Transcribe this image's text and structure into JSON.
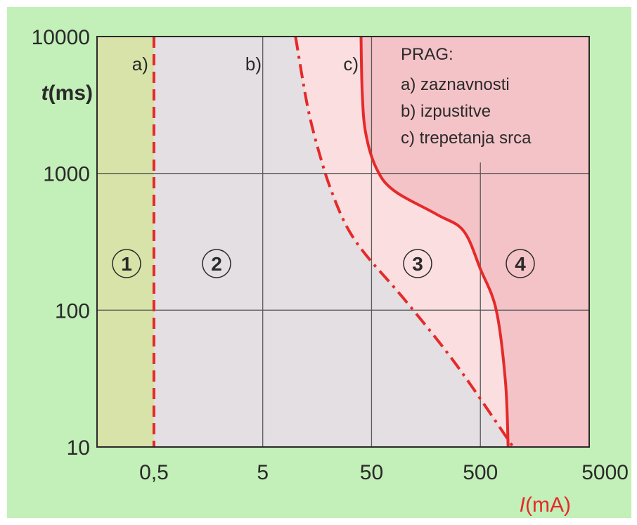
{
  "chart_data": {
    "type": "line",
    "x_scale": "log",
    "y_scale": "log",
    "xlim": [
      0.15,
      5000
    ],
    "ylim": [
      10,
      10000
    ],
    "x_ticks": [
      "0,5",
      "5",
      "50",
      "500",
      "5000"
    ],
    "x_tick_values": [
      0.5,
      5,
      50,
      500,
      5000
    ],
    "y_ticks": [
      "10",
      "100",
      "1000",
      "10000"
    ],
    "y_tick_values": [
      10,
      100,
      1000,
      10000
    ],
    "xlabel": {
      "symbol": "I",
      "unit": "(mA)"
    },
    "ylabel": {
      "symbol": "t",
      "unit": "(ms)"
    },
    "grid": true,
    "series": [
      {
        "label": "a)",
        "style": "dashed",
        "color": "#e52a2a",
        "points": [
          [
            0.5,
            10
          ],
          [
            0.5,
            10000
          ]
        ]
      },
      {
        "label": "b)",
        "style": "dash-dot",
        "color": "#e52a2a",
        "points": [
          [
            10,
            10000
          ],
          [
            13,
            3000
          ],
          [
            17,
            1300
          ],
          [
            22,
            700
          ],
          [
            30,
            400
          ],
          [
            45,
            250
          ],
          [
            100,
            120
          ],
          [
            300,
            40
          ],
          [
            1000,
            10
          ]
        ]
      },
      {
        "label": "c)",
        "style": "solid",
        "color": "#e52a2a",
        "points": [
          [
            40,
            10000
          ],
          [
            41,
            4000
          ],
          [
            44,
            2000
          ],
          [
            55,
            1100
          ],
          [
            80,
            750
          ],
          [
            200,
            500
          ],
          [
            350,
            380
          ],
          [
            500,
            200
          ],
          [
            700,
            100
          ],
          [
            850,
            30
          ],
          [
            900,
            10
          ]
        ]
      }
    ],
    "zones": [
      {
        "label": "1",
        "color": "#d7e3a8"
      },
      {
        "label": "2",
        "color": "#e3dfe3"
      },
      {
        "label": "3",
        "color": "#fbdfe0"
      },
      {
        "label": "4",
        "color": "#f4c3c7"
      }
    ],
    "legend": {
      "title": "PRAG:",
      "items": [
        "a) zaznavnosti",
        "b) izpustitve",
        "c) trepetanja srca"
      ]
    }
  }
}
